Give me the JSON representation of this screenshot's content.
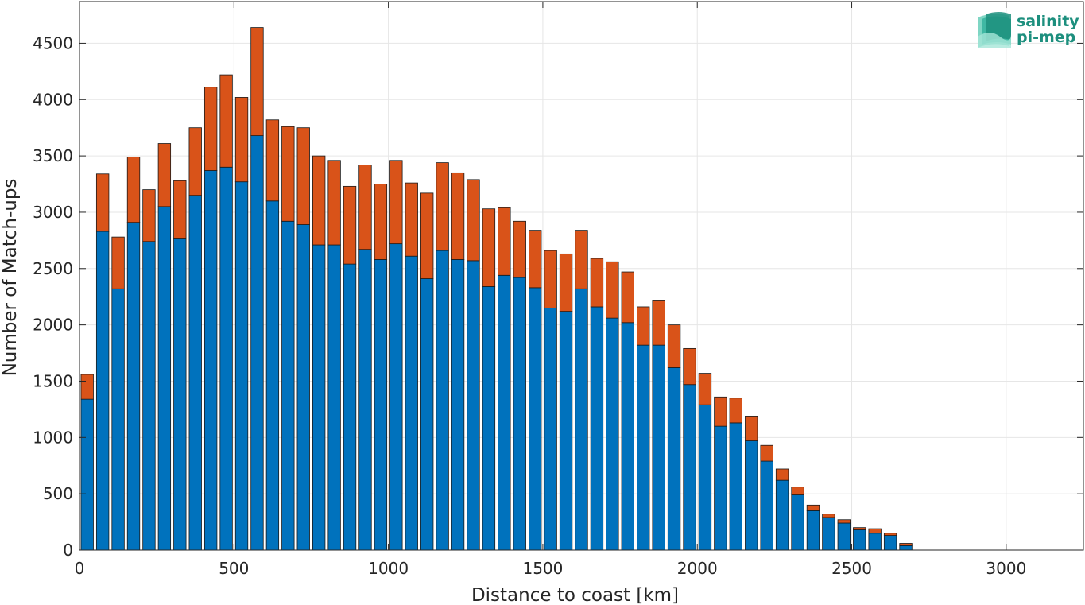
{
  "chart_data": {
    "type": "bar",
    "stacked": true,
    "xlabel": "Distance to coast [km]",
    "ylabel": "Number of Match-ups",
    "xlim": [
      0,
      3250
    ],
    "ylim": [
      0,
      4870
    ],
    "xticks": [
      0,
      500,
      1000,
      1500,
      2000,
      2500,
      3000
    ],
    "yticks": [
      0,
      500,
      1000,
      1500,
      2000,
      2500,
      3000,
      3500,
      4000,
      4500
    ],
    "grid": true,
    "bin_width": 50,
    "x": [
      25,
      75,
      125,
      175,
      225,
      275,
      325,
      375,
      425,
      475,
      525,
      575,
      625,
      675,
      725,
      775,
      825,
      875,
      925,
      975,
      1025,
      1075,
      1125,
      1175,
      1225,
      1275,
      1325,
      1375,
      1425,
      1475,
      1525,
      1575,
      1625,
      1675,
      1725,
      1775,
      1825,
      1875,
      1925,
      1975,
      2025,
      2075,
      2125,
      2175,
      2225,
      2275,
      2325,
      2375,
      2425,
      2475,
      2525,
      2575,
      2625,
      2675
    ],
    "series": [
      {
        "color": "#0072BD",
        "values": [
          1340,
          2830,
          2320,
          2910,
          2740,
          3050,
          2770,
          3150,
          3370,
          3400,
          3270,
          3680,
          3100,
          2920,
          2890,
          2710,
          2710,
          2540,
          2670,
          2580,
          2720,
          2610,
          2410,
          2660,
          2580,
          2570,
          2340,
          2440,
          2420,
          2330,
          2150,
          2120,
          2320,
          2160,
          2060,
          2020,
          1820,
          1820,
          1620,
          1470,
          1290,
          1100,
          1130,
          970,
          790,
          620,
          490,
          350,
          290,
          240,
          180,
          150,
          130,
          40
        ]
      },
      {
        "color": "#D95319",
        "values": [
          220,
          510,
          460,
          580,
          460,
          560,
          510,
          600,
          740,
          820,
          750,
          960,
          720,
          840,
          860,
          790,
          750,
          690,
          750,
          670,
          740,
          650,
          760,
          780,
          770,
          720,
          690,
          600,
          500,
          510,
          510,
          510,
          520,
          430,
          500,
          450,
          340,
          400,
          380,
          320,
          280,
          260,
          220,
          220,
          140,
          100,
          70,
          50,
          30,
          30,
          20,
          40,
          20,
          20
        ]
      }
    ]
  },
  "logo": {
    "line1": "salinity",
    "line2": "pi-mep"
  }
}
